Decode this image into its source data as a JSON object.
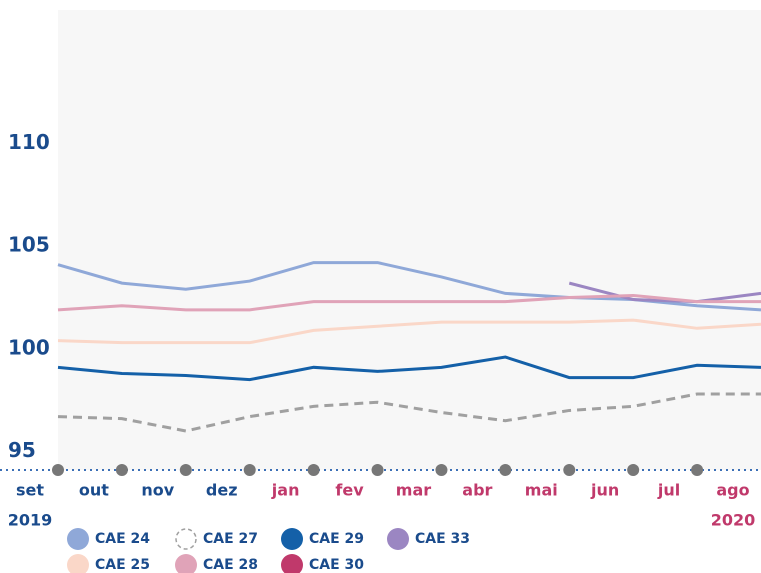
{
  "chart_data": {
    "type": "line",
    "categories": [
      "set",
      "out",
      "nov",
      "dez",
      "jan",
      "fev",
      "mar",
      "abr",
      "mai",
      "jun",
      "jul",
      "ago"
    ],
    "years": [
      "2019",
      "2020"
    ],
    "ylim": [
      94.1,
      116.5
    ],
    "yticks": [
      95,
      100,
      105,
      110
    ],
    "series": [
      {
        "name": "CAE 24",
        "color": "#8fa8d8",
        "values": [
          104.1,
          103.2,
          102.9,
          103.3,
          104.2,
          104.2,
          103.5,
          102.7,
          102.5,
          102.4,
          102.1,
          101.9
        ]
      },
      {
        "name": "CAE 27",
        "color": "#a0a0a0",
        "dashed": true,
        "values": [
          96.7,
          96.6,
          96.0,
          96.7,
          97.2,
          97.4,
          96.9,
          96.5,
          97.0,
          97.2,
          97.8,
          97.8
        ]
      },
      {
        "name": "CAE 29",
        "color": "#1460a8",
        "values": [
          99.1,
          98.8,
          98.7,
          98.5,
          99.1,
          98.9,
          99.1,
          99.6,
          98.6,
          98.6,
          99.2,
          99.1
        ]
      },
      {
        "name": "CAE 33",
        "color": "#9b86c2",
        "values": [
          null,
          null,
          null,
          null,
          null,
          null,
          null,
          null,
          103.2,
          102.4,
          102.3,
          102.7
        ]
      },
      {
        "name": "CAE 25",
        "color": "#fad7c8",
        "values": [
          100.4,
          100.3,
          100.3,
          100.3,
          100.9,
          101.1,
          101.3,
          101.3,
          101.3,
          101.4,
          101.0,
          101.2
        ]
      },
      {
        "name": "CAE 28",
        "color": "#e0a3b8",
        "values": [
          101.9,
          102.1,
          101.9,
          101.9,
          102.3,
          102.3,
          102.3,
          102.3,
          102.5,
          102.6,
          102.3,
          102.3
        ]
      },
      {
        "name": "CAE 30",
        "color": "#c0396b",
        "values": [
          null,
          null,
          null,
          null,
          null,
          null,
          null,
          null,
          null,
          null,
          null,
          null
        ]
      }
    ]
  }
}
